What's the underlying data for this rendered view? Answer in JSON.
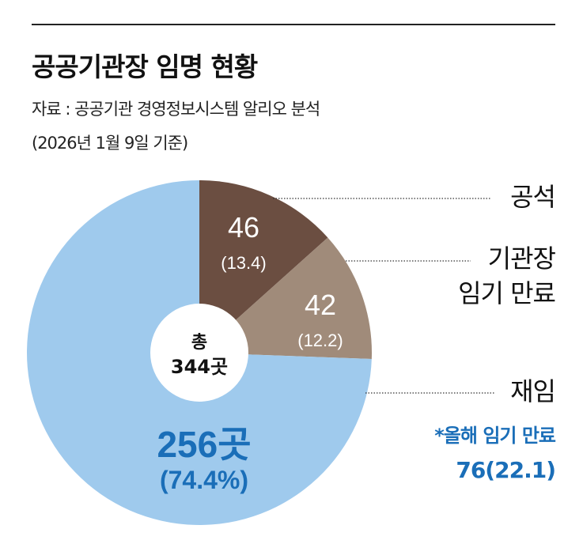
{
  "title": "공공기관장 임명 현황",
  "source": "자료 : 공공기관 경영정보시스템 알리오 분석",
  "date_note": "(2026년 1월 9일 기준)",
  "chart_data": {
    "type": "pie",
    "total_label_1": "총",
    "total_label_2": "344곳",
    "slices": [
      {
        "name": "공석",
        "value": 46,
        "percent": 13.4,
        "value_label": "46",
        "percent_label": "(13.4)",
        "color": "#6b4e41"
      },
      {
        "name": "기관장 임기 만료",
        "value": 42,
        "percent": 12.2,
        "value_label": "42",
        "percent_label": "(12.2)",
        "color": "#a08b7a"
      },
      {
        "name": "재임",
        "value": 256,
        "percent": 74.4,
        "value_label": "256곳",
        "percent_label": "(74.4%)",
        "color": "#9fcaed"
      }
    ],
    "legend": {
      "vacant": "공석",
      "expired_1": "기관장",
      "expired_2": "임기 만료",
      "incumbent": "재임",
      "note_1": "*올해 임기 만료",
      "note_2": "76(22.1)"
    },
    "accent_color": "#1a6eb8"
  }
}
